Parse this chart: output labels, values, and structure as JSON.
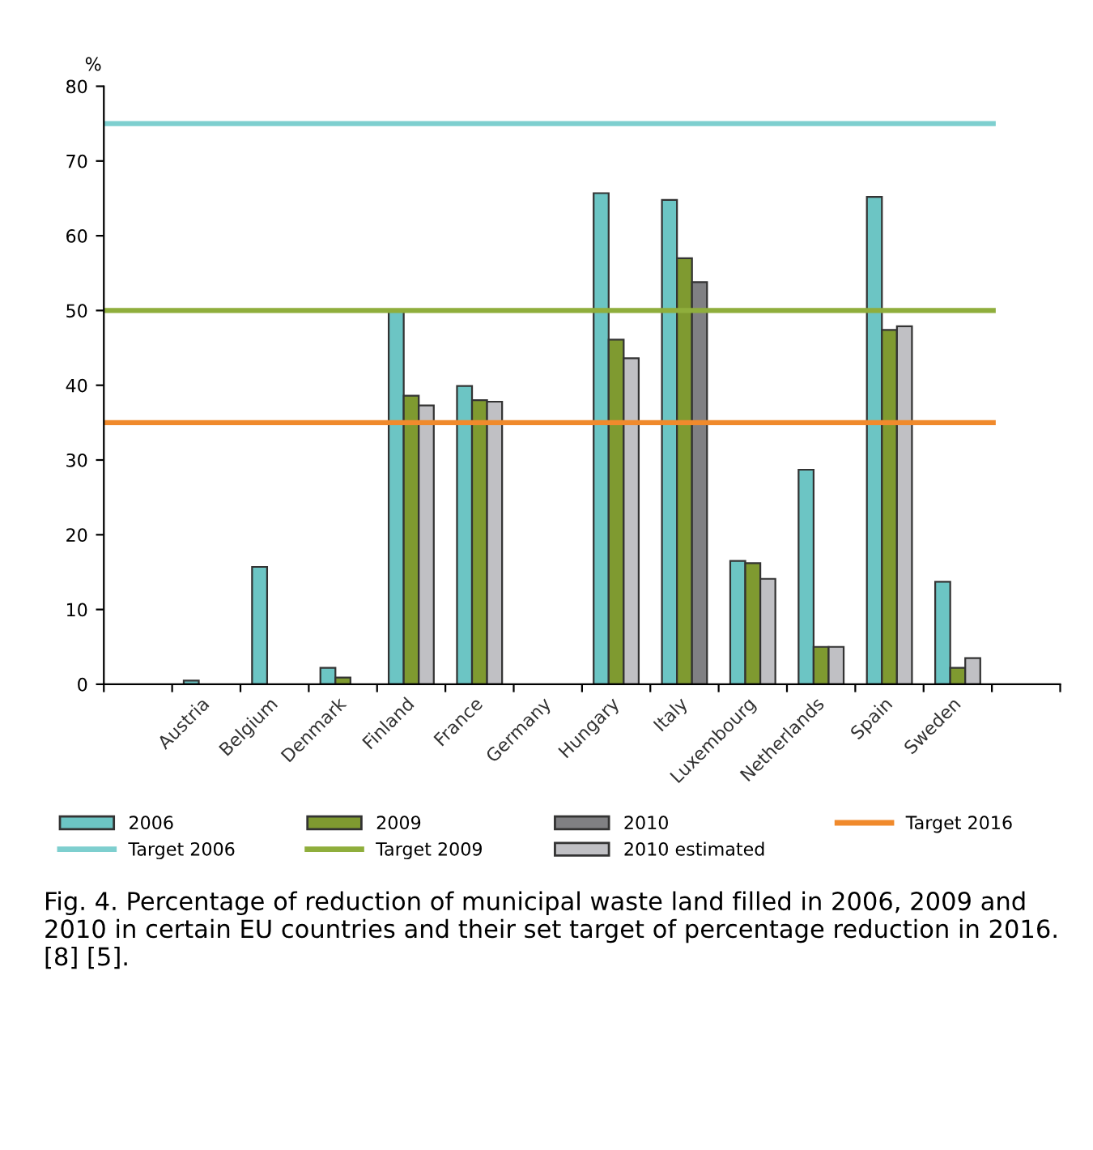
{
  "chart_data": {
    "type": "bar",
    "ylabel": "%",
    "categories": [
      null,
      "Austria",
      "Belgium",
      "Denmark",
      "Finland",
      "France",
      "Germany",
      "Hungary",
      "Italy",
      "Luxembourg",
      "Netherlands",
      "Spain",
      "Sweden",
      null
    ],
    "series": [
      {
        "name": "2006",
        "color": "#6cc5c4",
        "values": [
          null,
          0.5,
          15.7,
          2.2,
          50.0,
          39.9,
          null,
          65.7,
          64.8,
          16.5,
          28.7,
          65.2,
          13.7,
          null
        ]
      },
      {
        "name": "2009",
        "color": "#7f9a30",
        "values": [
          null,
          null,
          null,
          0.9,
          38.6,
          38.0,
          null,
          46.1,
          57.0,
          16.2,
          5.0,
          47.4,
          2.2,
          null
        ]
      },
      {
        "name": "2010",
        "color": "#808083",
        "values": [
          null,
          null,
          null,
          null,
          null,
          null,
          null,
          null,
          53.8,
          null,
          null,
          null,
          null,
          null
        ]
      },
      {
        "name": "2010 estimated",
        "color": "#c0c0c4",
        "values": [
          null,
          null,
          null,
          null,
          37.3,
          37.8,
          null,
          43.6,
          null,
          14.1,
          5.0,
          47.9,
          3.5,
          null
        ]
      }
    ],
    "ref_lines": [
      {
        "axis": "y",
        "value": 35,
        "label": "Target 2016",
        "color": "#f08a2c"
      },
      {
        "axis": "y",
        "value": 75,
        "label": "Target 2006",
        "color": "#7ecfcf"
      },
      {
        "axis": "y",
        "value": 50,
        "label": "Target 2009",
        "color": "#8fae3c"
      }
    ],
    "ylim": [
      0,
      80
    ],
    "yticks": [
      0,
      10,
      20,
      30,
      40,
      50,
      60,
      70,
      80
    ],
    "grid": false,
    "legend": "bottom",
    "annotations": [
      "Fig. 4. Percentage of reduction of municipal waste land filled in 2006, 2009 and 2010 in certain EU countries and their set target of percentage reduction in 2016. [8] [5]."
    ]
  }
}
